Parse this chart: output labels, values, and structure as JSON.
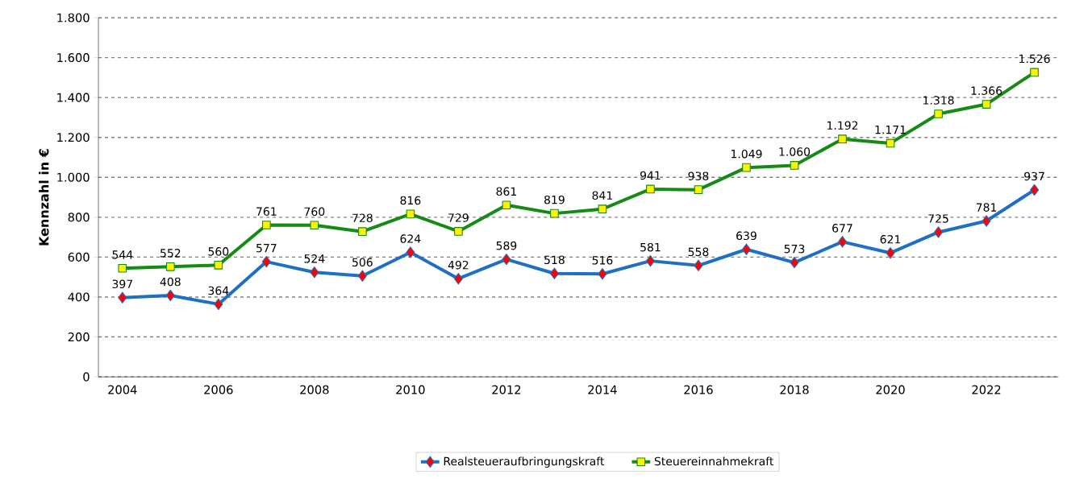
{
  "chart_data": {
    "type": "line",
    "ylabel": "Kennzahl in €",
    "x": [
      2004,
      2005,
      2006,
      2007,
      2008,
      2009,
      2010,
      2011,
      2012,
      2013,
      2014,
      2015,
      2016,
      2017,
      2018,
      2019,
      2020,
      2021,
      2022,
      2023
    ],
    "xlim": [
      2003.5,
      2023.5
    ],
    "xticks": [
      2004,
      2006,
      2008,
      2010,
      2012,
      2014,
      2016,
      2018,
      2020,
      2022
    ],
    "ylim": [
      0,
      1800
    ],
    "yticks": [
      0,
      200,
      400,
      600,
      800,
      {
        "value": 1000,
        "label": "1.000"
      },
      {
        "value": 1200,
        "label": "1.200"
      },
      {
        "value": 1400,
        "label": "1.400"
      },
      {
        "value": 1600,
        "label": "1.600"
      },
      {
        "value": 1800,
        "label": "1.800"
      }
    ],
    "series": [
      {
        "name": "Realsteueraufbringungskraft",
        "color": "#1f6fc5",
        "marker": "diamond",
        "values": [
          397,
          408,
          364,
          577,
          524,
          506,
          624,
          492,
          589,
          518,
          516,
          581,
          558,
          639,
          573,
          677,
          621,
          725,
          781,
          937
        ],
        "value_labels": [
          "397",
          "408",
          "364",
          "577",
          "524",
          "506",
          "624",
          "492",
          "589",
          "518",
          "516",
          "581",
          "558",
          "639",
          "573",
          "677",
          "621",
          "725",
          "781",
          "937"
        ]
      },
      {
        "name": "Steuereinnahmekraft",
        "color": "#158a15",
        "marker": "square",
        "values": [
          544,
          552,
          560,
          761,
          760,
          728,
          816,
          729,
          861,
          819,
          841,
          941,
          938,
          1049,
          1060,
          1192,
          1171,
          1318,
          1366,
          1526
        ],
        "value_labels": [
          "544",
          "552",
          "560",
          "761",
          "760",
          "728",
          "816",
          "729",
          "861",
          "819",
          "841",
          "941",
          "938",
          "1.049",
          "1.060",
          "1.192",
          "1.171",
          "1.318",
          "1.366",
          "1.526"
        ]
      }
    ],
    "grid": "y",
    "legend": "bottom",
    "line_style": "solid"
  }
}
